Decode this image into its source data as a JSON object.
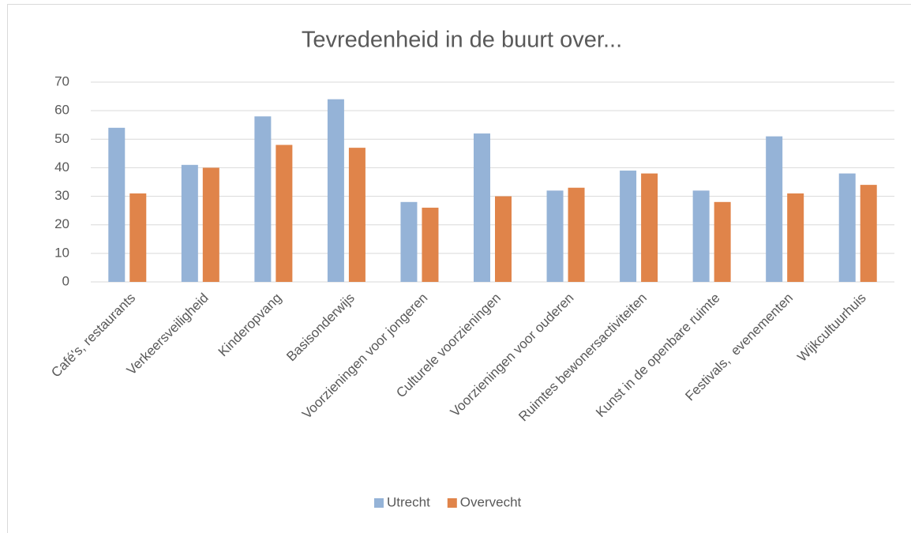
{
  "chart_data": {
    "type": "grouped_bar",
    "title": "Tevredenheid in de buurt over...",
    "categories": [
      "Café's, restaurants",
      "Verkeersveiligheid",
      "Kinderopvang",
      "Basisonderwijs",
      "Voorzieningen voor jongeren",
      "Culturele voorzieningen",
      "Voorzieningen voor ouderen",
      "Ruimtes bewonersactiviteiten",
      "Kunst in de openbare ruimte",
      "Festivals,  evenementen",
      "Wijkcultuurhuis"
    ],
    "series": [
      {
        "name": "Utrecht",
        "color": "#95b3d7",
        "values": [
          54,
          41,
          58,
          64,
          28,
          52,
          32,
          39,
          32,
          51,
          38
        ]
      },
      {
        "name": "Overvecht",
        "color": "#e0844a",
        "values": [
          31,
          40,
          48,
          47,
          26,
          30,
          33,
          38,
          28,
          31,
          34
        ]
      }
    ],
    "ylim": [
      0,
      70
    ],
    "yticks": [
      0,
      10,
      20,
      30,
      40,
      50,
      60,
      70
    ],
    "grid": true,
    "legend": "bottom"
  }
}
